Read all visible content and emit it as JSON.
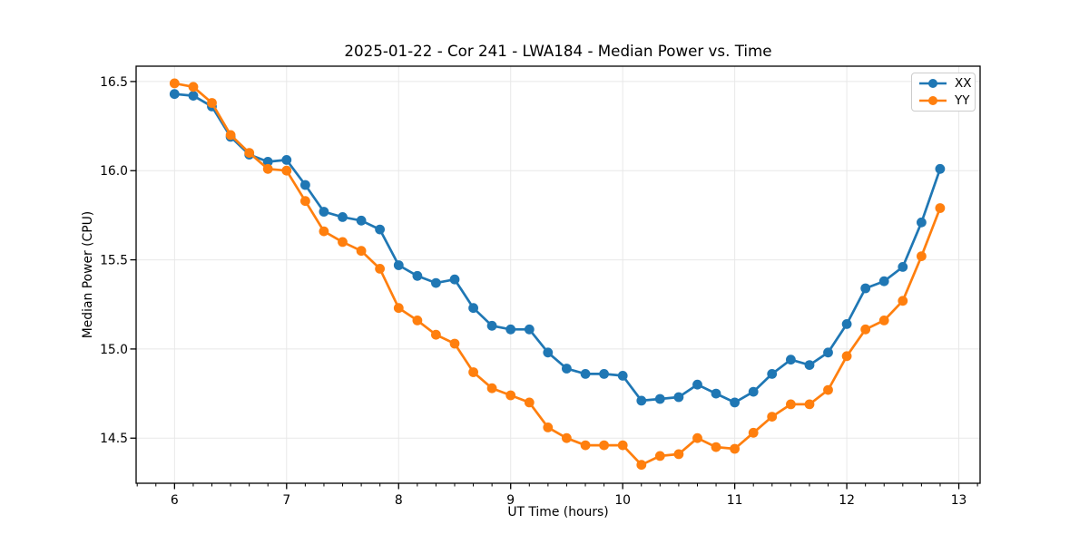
{
  "figure": {
    "background": "#ffffff"
  },
  "chart_data": {
    "type": "line",
    "title": "2025-01-22 - Cor 241 - LWA184 - Median Power vs. Time",
    "xlabel": "UT Time (hours)",
    "ylabel": "Median Power (CPU)",
    "xlim": [
      5.657,
      13.19
    ],
    "ylim": [
      14.247,
      16.586
    ],
    "xticks": [
      6,
      7,
      8,
      9,
      10,
      11,
      12,
      13
    ],
    "xtick_labels": [
      "6",
      "7",
      "8",
      "9",
      "10",
      "11",
      "12",
      "13"
    ],
    "x_minor_step": 0.16667,
    "yticks": [
      14.5,
      15.0,
      15.5,
      16.0,
      16.5
    ],
    "ytick_labels": [
      "14.5",
      "15.0",
      "15.5",
      "16.0",
      "16.5"
    ],
    "grid": true,
    "grid_color": "#e8e8e8",
    "legend_position": "upper right",
    "x": [
      6.0,
      6.167,
      6.333,
      6.5,
      6.667,
      6.833,
      7.0,
      7.167,
      7.333,
      7.5,
      7.667,
      7.833,
      8.0,
      8.167,
      8.333,
      8.5,
      8.667,
      8.833,
      9.0,
      9.167,
      9.333,
      9.5,
      9.667,
      9.833,
      10.0,
      10.167,
      10.333,
      10.5,
      10.667,
      10.833,
      11.0,
      11.167,
      11.333,
      11.5,
      11.667,
      11.833,
      12.0,
      12.167,
      12.333,
      12.5,
      12.667,
      12.833
    ],
    "series": [
      {
        "name": "XX",
        "color": "#1f77b4",
        "values": [
          16.43,
          16.42,
          16.36,
          16.19,
          16.09,
          16.05,
          16.06,
          15.92,
          15.77,
          15.74,
          15.72,
          15.67,
          15.47,
          15.41,
          15.37,
          15.39,
          15.23,
          15.13,
          15.11,
          15.11,
          14.98,
          14.89,
          14.86,
          14.86,
          14.85,
          14.71,
          14.72,
          14.73,
          14.8,
          14.75,
          14.7,
          14.76,
          14.86,
          14.94,
          14.91,
          14.98,
          15.14,
          15.34,
          15.38,
          15.46,
          15.71,
          16.01
        ]
      },
      {
        "name": "YY",
        "color": "#ff7f0e",
        "values": [
          16.49,
          16.47,
          16.38,
          16.2,
          16.1,
          16.01,
          16.0,
          15.83,
          15.66,
          15.6,
          15.55,
          15.45,
          15.23,
          15.16,
          15.08,
          15.03,
          14.87,
          14.78,
          14.74,
          14.7,
          14.56,
          14.5,
          14.46,
          14.46,
          14.46,
          14.35,
          14.4,
          14.41,
          14.5,
          14.45,
          14.44,
          14.53,
          14.62,
          14.69,
          14.69,
          14.77,
          14.96,
          15.11,
          15.16,
          15.27,
          15.52,
          15.79
        ]
      }
    ]
  }
}
